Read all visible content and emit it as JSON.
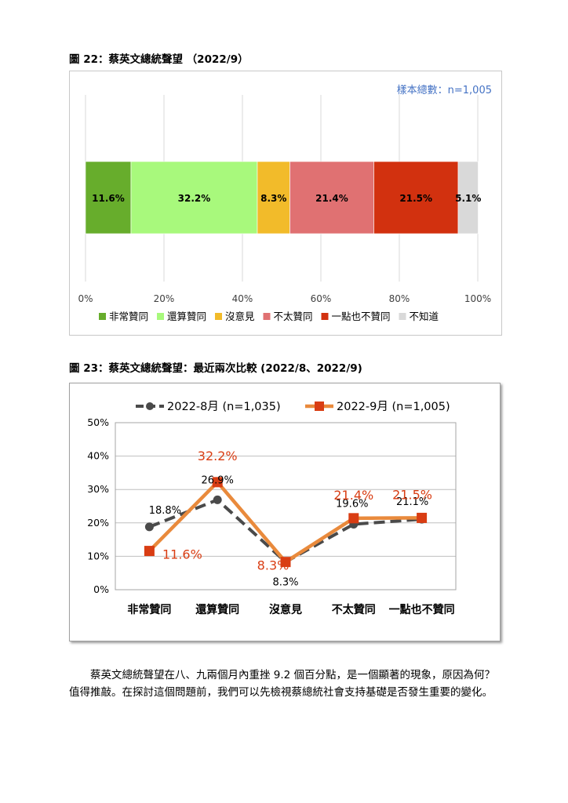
{
  "fig22": {
    "title": "圖 22：蔡英文總統聲望 （2022/9）",
    "sample": "樣本總數：n=1,005"
  },
  "fig23": {
    "title": "圖 23：蔡英文總統聲望：最近兩次比較 (2022/8、2022/9)"
  },
  "paragraph": "蔡英文總統聲望在八、九兩個月內重挫 9.2 個百分點，是一個顯著的現象，原因為何？值得推敲。在探討這個問題前，我們可以先檢視蔡總統社會支持基礎是否發生重要的變化。",
  "chart_data": [
    {
      "type": "bar",
      "stacked": true,
      "orientation": "horizontal",
      "categories": [
        "非常贊同",
        "還算贊同",
        "沒意見",
        "不太贊同",
        "一點也不贊同",
        "不知道"
      ],
      "values": [
        11.6,
        32.2,
        8.3,
        21.4,
        21.5,
        5.1
      ],
      "labels": [
        "11.6%",
        "32.2%",
        "8.3%",
        "21.4%",
        "21.5%",
        "5.1%"
      ],
      "colors": [
        "#67ad2c",
        "#a8f97c",
        "#f2bb2a",
        "#e07172",
        "#d2310f",
        "#d9d9d9"
      ],
      "xlim": [
        0,
        100
      ],
      "xticks": [
        "0%",
        "20%",
        "40%",
        "60%",
        "80%",
        "100%"
      ],
      "grid": true,
      "legend": "bottom"
    },
    {
      "type": "line",
      "categories": [
        "非常贊同",
        "還算贊同",
        "沒意見",
        "不太贊同",
        "一點也不贊同"
      ],
      "series": [
        {
          "name": "2022-8月 (n=1,035)",
          "values": [
            18.8,
            26.9,
            8.3,
            19.6,
            21.1
          ],
          "labels": [
            "18.8%",
            "26.9%",
            "8.3%",
            "19.6%",
            "21.1%"
          ],
          "color": "#4a4a4a",
          "dashed": true
        },
        {
          "name": "2022-9月 (n=1,005)",
          "values": [
            11.6,
            32.2,
            8.3,
            21.4,
            21.5
          ],
          "labels": [
            "11.6%",
            "32.2%",
            "8.3%",
            "21.4%",
            "21.5%"
          ],
          "color": "#e98a3c",
          "marker_color": "#d93d13",
          "label_color": "#d93d13"
        }
      ],
      "ylim": [
        0,
        50
      ],
      "yticks": [
        "0%",
        "10%",
        "20%",
        "30%",
        "40%",
        "50%"
      ],
      "grid": true,
      "legend": "top"
    }
  ]
}
